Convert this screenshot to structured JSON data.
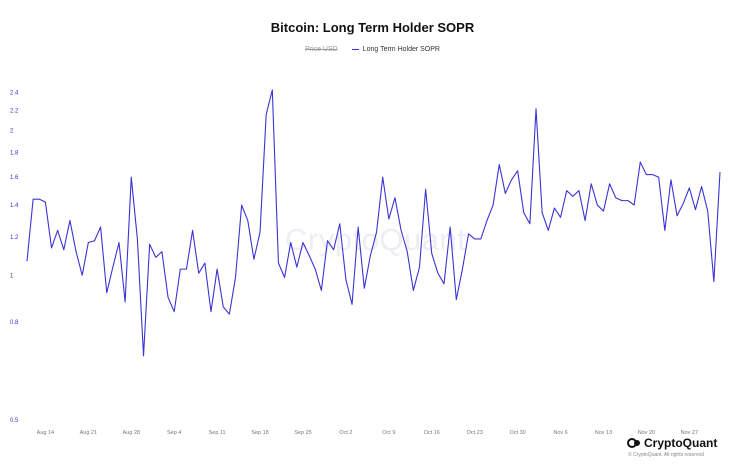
{
  "header": {
    "title": "Bitcoin: Long Term Holder SOPR"
  },
  "legend": {
    "hidden_label": "Price USD",
    "series_label": "Long Term Holder SOPR"
  },
  "watermark": "CryptoQuant",
  "footer": {
    "brand": "CryptoQuant",
    "copyright": "© CryptoQuant. All rights reserved"
  },
  "colors": {
    "series": "#3b33d4",
    "axis_text": "#3b33d4",
    "tick_text": "#777777"
  },
  "chart_data": {
    "type": "line",
    "title": "Bitcoin: Long Term Holder SOPR",
    "y_scale": "log",
    "ylim": [
      0.5,
      2.5
    ],
    "grid": false,
    "legend_placement": "top-center",
    "y_ticks": [
      {
        "value": 2.4,
        "label": "2.4"
      },
      {
        "value": 2.2,
        "label": "2.2"
      },
      {
        "value": 2.0,
        "label": "2"
      },
      {
        "value": 1.8,
        "label": "1.8"
      },
      {
        "value": 1.6,
        "label": "1.6"
      },
      {
        "value": 1.4,
        "label": "1.4"
      },
      {
        "value": 1.2,
        "label": "1.2"
      },
      {
        "value": 1.0,
        "label": "1"
      },
      {
        "value": 0.8,
        "label": "0.8"
      },
      {
        "value": 0.5,
        "label": "0.5"
      }
    ],
    "x_ticks": [
      {
        "index": 3,
        "label": "Aug 14"
      },
      {
        "index": 10,
        "label": "Aug 21"
      },
      {
        "index": 17,
        "label": "Aug 28"
      },
      {
        "index": 24,
        "label": "Sep 4"
      },
      {
        "index": 31,
        "label": "Sep 11"
      },
      {
        "index": 38,
        "label": "Sep 18"
      },
      {
        "index": 45,
        "label": "Sep 25"
      },
      {
        "index": 52,
        "label": "Oct 2"
      },
      {
        "index": 59,
        "label": "Oct 9"
      },
      {
        "index": 66,
        "label": "Oct 16"
      },
      {
        "index": 73,
        "label": "Oct 23"
      },
      {
        "index": 80,
        "label": "Oct 30"
      },
      {
        "index": 87,
        "label": "Nov 6"
      },
      {
        "index": 94,
        "label": "Nov 13"
      },
      {
        "index": 101,
        "label": "Nov 20"
      },
      {
        "index": 108,
        "label": "Nov 27"
      }
    ],
    "series": [
      {
        "name": "Long Term Holder SOPR",
        "values": [
          1.07,
          1.44,
          1.44,
          1.42,
          1.14,
          1.24,
          1.13,
          1.3,
          1.12,
          1.0,
          1.17,
          1.18,
          1.26,
          0.92,
          1.04,
          1.17,
          0.88,
          1.6,
          1.19,
          0.68,
          1.16,
          1.09,
          1.12,
          0.9,
          0.84,
          1.03,
          1.03,
          1.24,
          1.01,
          1.06,
          0.84,
          1.03,
          0.86,
          0.83,
          0.99,
          1.4,
          1.3,
          1.08,
          1.23,
          2.16,
          2.43,
          1.06,
          0.99,
          1.17,
          1.04,
          1.17,
          1.1,
          1.03,
          0.93,
          1.18,
          1.13,
          1.28,
          0.98,
          0.87,
          1.26,
          0.94,
          1.1,
          1.23,
          1.6,
          1.31,
          1.45,
          1.24,
          1.12,
          0.93,
          1.04,
          1.51,
          1.11,
          1.01,
          0.96,
          1.26,
          0.89,
          1.03,
          1.22,
          1.19,
          1.19,
          1.3,
          1.4,
          1.7,
          1.48,
          1.58,
          1.65,
          1.35,
          1.28,
          2.22,
          1.35,
          1.24,
          1.38,
          1.32,
          1.5,
          1.46,
          1.5,
          1.3,
          1.55,
          1.4,
          1.36,
          1.55,
          1.45,
          1.43,
          1.43,
          1.4,
          1.72,
          1.62,
          1.62,
          1.6,
          1.24,
          1.58,
          1.33,
          1.41,
          1.52,
          1.37,
          1.53,
          1.36,
          0.97,
          1.64
        ]
      }
    ]
  }
}
